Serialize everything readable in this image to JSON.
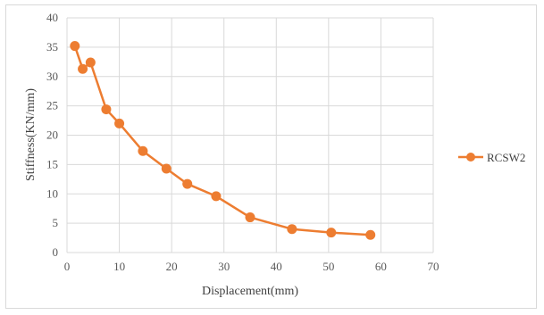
{
  "chart_data": {
    "type": "scatter",
    "xlabel": "Displacement(mm)",
    "ylabel": "Stiffness(KN/mm)",
    "xlim": [
      0,
      70
    ],
    "ylim": [
      0,
      40
    ],
    "xticks": [
      0,
      10,
      20,
      30,
      40,
      50,
      60,
      70
    ],
    "yticks": [
      0,
      5,
      10,
      15,
      20,
      25,
      30,
      35,
      40
    ],
    "grid": true,
    "legend_position": "right",
    "series": [
      {
        "name": "RCSW2",
        "color": "#ED7D31",
        "marker": "circle",
        "line": true,
        "points": [
          {
            "x": 1.5,
            "y": 35.2
          },
          {
            "x": 3.0,
            "y": 31.3
          },
          {
            "x": 4.5,
            "y": 32.4
          },
          {
            "x": 7.5,
            "y": 24.4
          },
          {
            "x": 10.0,
            "y": 22.0
          },
          {
            "x": 14.5,
            "y": 17.3
          },
          {
            "x": 19.0,
            "y": 14.3
          },
          {
            "x": 23.0,
            "y": 11.7
          },
          {
            "x": 28.5,
            "y": 9.6
          },
          {
            "x": 35.0,
            "y": 6.0
          },
          {
            "x": 43.0,
            "y": 4.0
          },
          {
            "x": 50.5,
            "y": 3.4
          },
          {
            "x": 58.0,
            "y": 3.0
          }
        ]
      }
    ]
  }
}
